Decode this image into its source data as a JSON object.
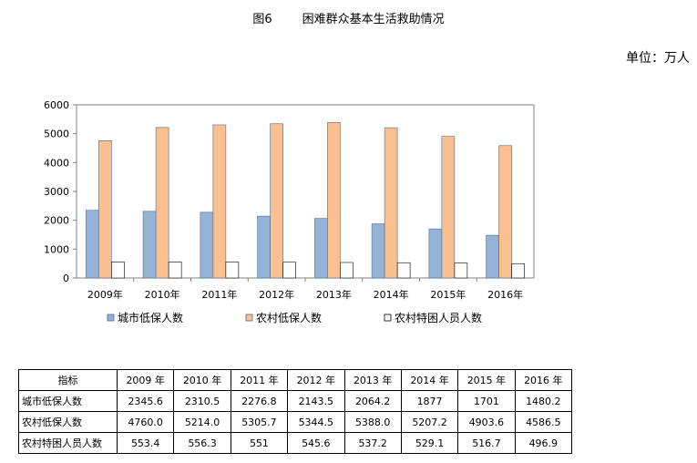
{
  "figure": {
    "title": "图6        困难群众基本生活救助情况",
    "unit": "单位：万人"
  },
  "chart_data": {
    "type": "bar",
    "categories": [
      "2009年",
      "2010年",
      "2011年",
      "2012年",
      "2013年",
      "2014年",
      "2015年",
      "2016年"
    ],
    "series": [
      {
        "name": "城市低保人数",
        "color": "#95b3d7",
        "values": [
          2345.6,
          2310.5,
          2276.8,
          2143.5,
          2064.2,
          1877,
          1701,
          1480.2
        ]
      },
      {
        "name": "农村低保人数",
        "color": "#fac090",
        "values": [
          4760.0,
          5214.0,
          5305.7,
          5344.5,
          5388.0,
          5207.2,
          4903.6,
          4586.5
        ]
      },
      {
        "name": "农村特困人员人数",
        "color": "#ffffff",
        "values": [
          553.4,
          556.3,
          551,
          545.6,
          537.2,
          529.1,
          516.7,
          496.9
        ]
      }
    ],
    "ylim": [
      0,
      6000
    ],
    "yticks": [
      "0",
      "1000",
      "2000",
      "3000",
      "4000",
      "5000",
      "6000"
    ],
    "grid": false,
    "legend": "bottom"
  },
  "table": {
    "header_label": "指标",
    "years": [
      "2009 年",
      "2010 年",
      "2011 年",
      "2012 年",
      "2013 年",
      "2014 年",
      "2015 年",
      "2016 年"
    ],
    "rows": [
      {
        "label": "城市低保人数",
        "values": [
          "2345.6",
          "2310.5",
          "2276.8",
          "2143.5",
          "2064.2",
          "1877",
          "1701",
          "1480.2"
        ]
      },
      {
        "label": "农村低保人数",
        "values": [
          "4760.0",
          "5214.0",
          "5305.7",
          "5344.5",
          "5388.0",
          "5207.2",
          "4903.6",
          "4586.5"
        ]
      },
      {
        "label": "农村特困人员人数",
        "values": [
          "553.4",
          "556.3",
          "551",
          "545.6",
          "537.2",
          "529.1",
          "516.7",
          "496.9"
        ]
      }
    ]
  }
}
